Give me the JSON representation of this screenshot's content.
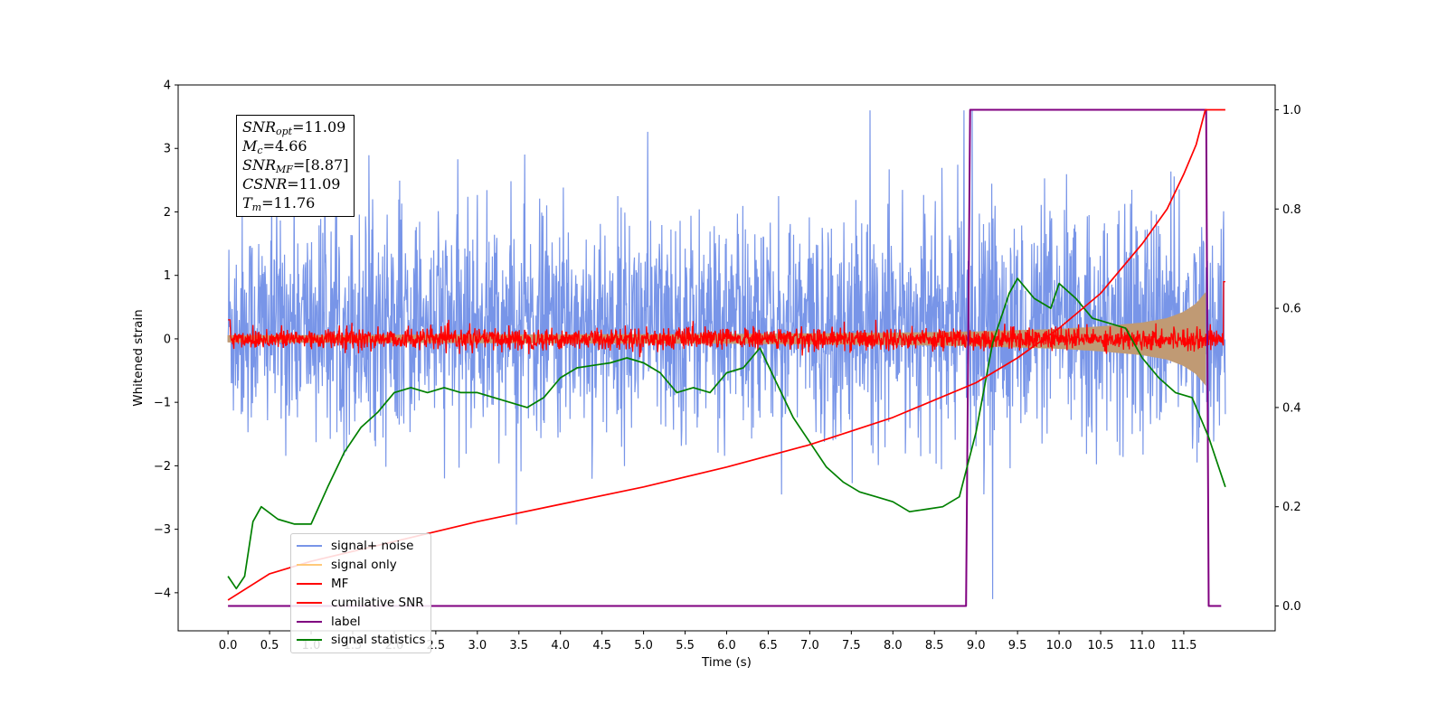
{
  "chart_data": {
    "type": "line",
    "xlabel": "Time (s)",
    "ylabel": "Whitened strain",
    "xlim": [
      -0.6,
      12.6
    ],
    "ylim": [
      -4.6,
      4.0
    ],
    "ylim_right": [
      -0.05,
      1.05
    ],
    "x_ticks": [
      "0.0",
      "0.5",
      "1.0",
      "1.5",
      "2.0",
      "2.5",
      "3.0",
      "3.5",
      "4.0",
      "4.5",
      "5.0",
      "5.5",
      "6.0",
      "6.5",
      "7.0",
      "7.5",
      "8.0",
      "8.5",
      "9.0",
      "9.5",
      "10.0",
      "10.5",
      "11.0",
      "11.5"
    ],
    "y_ticks": [
      "4",
      "3",
      "2",
      "1",
      "0",
      "−1",
      "−2",
      "−3",
      "−4"
    ],
    "y_ticks_right": [
      "1.0",
      "0.8",
      "0.6",
      "0.4",
      "0.2",
      "0.0"
    ],
    "legend_position": "lower-left",
    "annotation": {
      "snr_opt": {
        "base": "SNR",
        "sub": "opt",
        "value": "=11.09"
      },
      "mc": {
        "base": "M",
        "sub": "c",
        "value": "=4.66"
      },
      "snr_mf": {
        "base": "SNR",
        "sub": "MF",
        "value": "=[8.87]"
      },
      "csnr": {
        "base": "CSNR",
        "value": "=11.09"
      },
      "tm": {
        "base": "T",
        "sub": "m",
        "value": "=11.76"
      }
    },
    "series": [
      {
        "name": "signal+ noise",
        "color": "#7895e8",
        "axis": "left",
        "range_y": [
          -2.0,
          2.6
        ],
        "peak_y": 3.6,
        "x_range": [
          0.0,
          12.0
        ]
      },
      {
        "name": "signal only",
        "color": "#ffc97a",
        "axis": "left",
        "envelope_x": [
          0.0,
          3.0,
          6.0,
          8.0,
          9.0,
          10.0,
          10.5,
          11.0,
          11.3,
          11.5,
          11.65,
          11.76
        ],
        "envelope_y": [
          0.05,
          0.06,
          0.07,
          0.09,
          0.11,
          0.15,
          0.19,
          0.25,
          0.32,
          0.42,
          0.55,
          0.72
        ]
      },
      {
        "name": "MF",
        "color": "#ff0000",
        "axis": "left",
        "range_y": [
          -0.15,
          0.15
        ],
        "x_range": [
          0.0,
          12.0
        ]
      },
      {
        "name": "cumilative SNR",
        "color": "#ff0000",
        "axis": "right",
        "x": [
          0.0,
          0.5,
          1.0,
          2.0,
          3.0,
          4.0,
          5.0,
          6.0,
          7.0,
          8.0,
          8.5,
          9.0,
          9.5,
          10.0,
          10.5,
          11.0,
          11.3,
          11.5,
          11.65,
          11.76,
          12.0
        ],
        "y": [
          0.012,
          0.065,
          0.09,
          0.13,
          0.17,
          0.205,
          0.24,
          0.28,
          0.325,
          0.38,
          0.415,
          0.45,
          0.5,
          0.56,
          0.63,
          0.73,
          0.8,
          0.87,
          0.93,
          1.0,
          1.0
        ]
      },
      {
        "name": "label",
        "color": "#800080",
        "axis": "right",
        "x": [
          0.0,
          8.88,
          8.93,
          11.77,
          11.8,
          11.95
        ],
        "y": [
          0.0,
          0.0,
          1.0,
          1.0,
          0.0,
          0.0
        ]
      },
      {
        "name": "signal statistics",
        "color": "#008000",
        "axis": "right",
        "x": [
          0.0,
          0.1,
          0.2,
          0.3,
          0.4,
          0.6,
          0.8,
          1.0,
          1.2,
          1.4,
          1.6,
          1.8,
          2.0,
          2.2,
          2.4,
          2.6,
          2.8,
          3.0,
          3.2,
          3.4,
          3.6,
          3.8,
          4.0,
          4.2,
          4.4,
          4.6,
          4.8,
          5.0,
          5.2,
          5.4,
          5.6,
          5.8,
          6.0,
          6.2,
          6.4,
          6.6,
          6.8,
          7.0,
          7.2,
          7.4,
          7.6,
          7.8,
          8.0,
          8.2,
          8.4,
          8.6,
          8.8,
          9.0,
          9.2,
          9.4,
          9.5,
          9.7,
          9.9,
          10.0,
          10.2,
          10.4,
          10.6,
          10.8,
          11.0,
          11.2,
          11.4,
          11.6,
          11.8,
          12.0
        ],
        "y": [
          0.06,
          0.035,
          0.06,
          0.17,
          0.2,
          0.175,
          0.165,
          0.165,
          0.24,
          0.31,
          0.36,
          0.39,
          0.43,
          0.44,
          0.43,
          0.44,
          0.43,
          0.43,
          0.42,
          0.41,
          0.4,
          0.42,
          0.46,
          0.48,
          0.485,
          0.49,
          0.5,
          0.49,
          0.47,
          0.43,
          0.44,
          0.43,
          0.47,
          0.48,
          0.52,
          0.45,
          0.38,
          0.33,
          0.28,
          0.25,
          0.23,
          0.22,
          0.21,
          0.19,
          0.195,
          0.2,
          0.22,
          0.35,
          0.53,
          0.63,
          0.66,
          0.62,
          0.6,
          0.65,
          0.62,
          0.58,
          0.57,
          0.56,
          0.5,
          0.46,
          0.43,
          0.42,
          0.34,
          0.24
        ]
      }
    ]
  }
}
